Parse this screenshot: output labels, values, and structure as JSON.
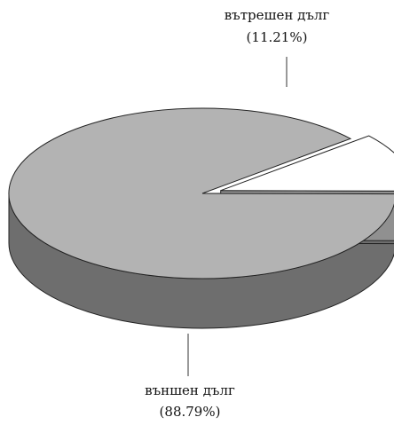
{
  "chart_data": {
    "type": "pie",
    "style": "3d-exploded",
    "slices": [
      {
        "label": "вътрешен дълг",
        "percent_text": "(11.21%)",
        "value": 11.21,
        "color": "#ffffff",
        "side_color": "#909090",
        "exploded": true
      },
      {
        "label": "външен дълг",
        "percent_text": "(88.79%)",
        "value": 88.79,
        "color": "#b3b3b3",
        "side_color": "#6e6e6e",
        "exploded": false
      }
    ]
  }
}
